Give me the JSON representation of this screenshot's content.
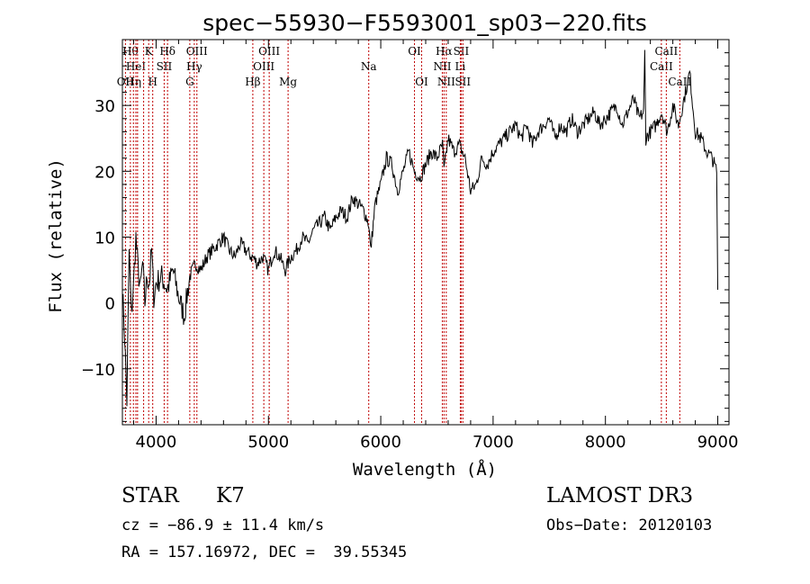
{
  "chart_data": {
    "type": "line",
    "title": "spec−55930−F5593001_sp03−220.fits",
    "xlabel": "Wavelength (Å)",
    "ylabel": "Flux (relative)",
    "xlim": [
      3700,
      9100
    ],
    "ylim": [
      -18.5,
      40
    ],
    "xticks": [
      {
        "value": 4000,
        "label": "4000"
      },
      {
        "value": 5000,
        "label": "5000"
      },
      {
        "value": 6000,
        "label": "6000"
      },
      {
        "value": 7000,
        "label": "7000"
      },
      {
        "value": 8000,
        "label": "8000"
      },
      {
        "value": 9000,
        "label": "9000"
      }
    ],
    "yticks": [
      {
        "value": -10,
        "label": "−10"
      },
      {
        "value": 0,
        "label": "0"
      },
      {
        "value": 10,
        "label": "10"
      },
      {
        "value": 20,
        "label": "20"
      },
      {
        "value": 30,
        "label": "30"
      }
    ],
    "series": [
      {
        "name": "flux",
        "x": [
          3700,
          3720,
          3740,
          3760,
          3780,
          3800,
          3820,
          3840,
          3860,
          3880,
          3900,
          3920,
          3940,
          3960,
          3980,
          4000,
          4050,
          4100,
          4150,
          4200,
          4250,
          4300,
          4350,
          4400,
          4450,
          4500,
          4550,
          4600,
          4650,
          4700,
          4750,
          4800,
          4850,
          4861,
          4900,
          4950,
          5000,
          5050,
          5100,
          5150,
          5175,
          5200,
          5250,
          5300,
          5350,
          5400,
          5450,
          5500,
          5550,
          5600,
          5650,
          5700,
          5750,
          5800,
          5850,
          5893,
          5910,
          5950,
          6000,
          6050,
          6100,
          6150,
          6200,
          6250,
          6300,
          6350,
          6400,
          6450,
          6500,
          6550,
          6563,
          6600,
          6650,
          6700,
          6750,
          6800,
          6850,
          6900,
          6950,
          7000,
          7050,
          7100,
          7150,
          7200,
          7250,
          7300,
          7350,
          7400,
          7450,
          7500,
          7550,
          7600,
          7650,
          7700,
          7750,
          7800,
          7850,
          7900,
          7950,
          8000,
          8050,
          8100,
          8150,
          8200,
          8250,
          8300,
          8340,
          8350,
          8360,
          8400,
          8450,
          8500,
          8550,
          8600,
          8650,
          8700,
          8750,
          8800,
          8850,
          8900,
          8950,
          8990,
          9000
        ],
        "y": [
          2,
          -5,
          -15,
          8,
          -2,
          3,
          10,
          5,
          2,
          6,
          0,
          4,
          3,
          8,
          1,
          3,
          4,
          2,
          5,
          1,
          -2,
          4,
          6,
          5,
          7,
          8,
          9,
          10,
          8,
          7,
          9,
          8,
          7,
          7,
          6,
          7,
          5,
          8,
          7,
          5,
          6,
          7,
          8,
          10,
          9,
          11,
          12,
          13,
          11,
          13,
          14,
          13,
          16,
          15,
          14,
          12,
          8,
          15,
          18,
          22,
          21,
          17,
          20,
          23,
          20,
          19,
          21,
          23,
          22,
          24,
          20,
          25,
          23,
          24,
          22,
          17,
          18,
          22,
          21,
          23,
          24,
          25,
          26,
          27,
          25,
          27,
          24,
          26,
          27,
          28,
          25,
          27,
          26,
          28,
          26,
          27,
          28,
          29,
          27,
          28,
          29,
          30,
          27,
          29,
          31,
          28,
          29,
          38,
          25,
          26,
          27,
          29,
          26,
          30,
          27,
          31,
          35,
          26,
          25,
          23,
          22,
          20,
          2
        ]
      }
    ],
    "spectral_lines": [
      {
        "wl": 3727,
        "label": "OII",
        "row": 3
      },
      {
        "wl": 3771,
        "label": "Hθ",
        "row": 1
      },
      {
        "wl": 3798,
        "label": "Hη",
        "row": 3
      },
      {
        "wl": 3820,
        "label": "HeI",
        "row": 2
      },
      {
        "wl": 3835,
        "label": "",
        "row": 0
      },
      {
        "wl": 3889,
        "label": "",
        "row": 0
      },
      {
        "wl": 3934,
        "label": "K",
        "row": 1
      },
      {
        "wl": 3970,
        "label": "H",
        "row": 3
      },
      {
        "wl": 4072,
        "label": "SII",
        "row": 2
      },
      {
        "wl": 4102,
        "label": "Hδ",
        "row": 1
      },
      {
        "wl": 4300,
        "label": "G",
        "row": 3
      },
      {
        "wl": 4340,
        "label": "Hγ",
        "row": 2
      },
      {
        "wl": 4363,
        "label": "OIII",
        "row": 1
      },
      {
        "wl": 4861,
        "label": "Hβ",
        "row": 3
      },
      {
        "wl": 4959,
        "label": "OIII",
        "row": 2
      },
      {
        "wl": 5007,
        "label": "OIII",
        "row": 1
      },
      {
        "wl": 5175,
        "label": "Mg",
        "row": 3
      },
      {
        "wl": 5893,
        "label": "Na",
        "row": 2
      },
      {
        "wl": 6300,
        "label": "OI",
        "row": 1
      },
      {
        "wl": 6364,
        "label": "OI",
        "row": 3
      },
      {
        "wl": 6548,
        "label": "NII",
        "row": 2
      },
      {
        "wl": 6563,
        "label": "Hα",
        "row": 1
      },
      {
        "wl": 6583,
        "label": "NII",
        "row": 3
      },
      {
        "wl": 6708,
        "label": "Li",
        "row": 2
      },
      {
        "wl": 6716,
        "label": "SII",
        "row": 1
      },
      {
        "wl": 6731,
        "label": "SII",
        "row": 3
      },
      {
        "wl": 8498,
        "label": "CaII",
        "row": 2
      },
      {
        "wl": 8542,
        "label": "CaII",
        "row": 1
      },
      {
        "wl": 8662,
        "label": "CaII",
        "row": 3
      }
    ]
  },
  "info": {
    "class_label": "STAR",
    "subclass_label": "K7",
    "survey_label": "LAMOST DR3",
    "cz_text": "cz = −86.9 ± 11.4 km/s",
    "obs_date_text": "Obs−Date: 20120103",
    "radec_text": "RA = 157.16972, DEC =  39.55345"
  }
}
